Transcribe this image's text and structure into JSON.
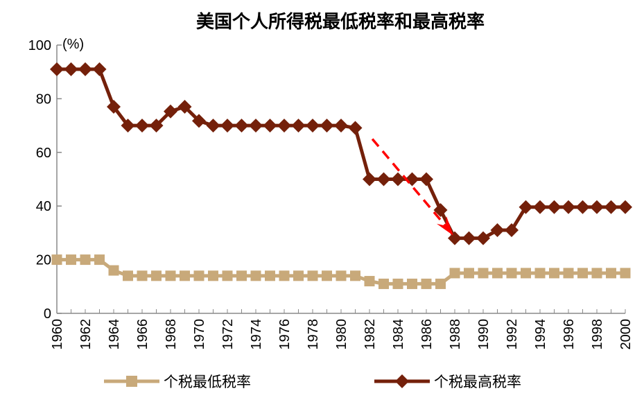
{
  "chart_data": {
    "type": "line",
    "title": "美国个人所得税最低税率和最高税率",
    "ylabel": "(%)",
    "xlabel": "",
    "ylim": [
      0,
      100
    ],
    "xlim": [
      1960,
      2000
    ],
    "yticks": [
      "0",
      "20",
      "40",
      "60",
      "80",
      "100"
    ],
    "xticks": [
      "1960",
      "1962",
      "1964",
      "1966",
      "1968",
      "1970",
      "1972",
      "1974",
      "1976",
      "1978",
      "1980",
      "1982",
      "1984",
      "1986",
      "1988",
      "1990",
      "1992",
      "1994",
      "1996",
      "1998",
      "2000"
    ],
    "grid": false,
    "legend_position": "bottom",
    "x": [
      1960,
      1961,
      1962,
      1963,
      1964,
      1965,
      1966,
      1967,
      1968,
      1969,
      1970,
      1971,
      1972,
      1973,
      1974,
      1975,
      1976,
      1977,
      1978,
      1979,
      1980,
      1981,
      1982,
      1983,
      1984,
      1985,
      1986,
      1987,
      1988,
      1989,
      1990,
      1991,
      1992,
      1993,
      1994,
      1995,
      1996,
      1997,
      1998,
      1999,
      2000
    ],
    "series": [
      {
        "name": "个税最低税率",
        "color": "#C8A97A",
        "marker": "square",
        "values": [
          20,
          20,
          20,
          20,
          16,
          14,
          14,
          14,
          14,
          14,
          14,
          14,
          14,
          14,
          14,
          14,
          14,
          14,
          14,
          14,
          14,
          14,
          12,
          11,
          11,
          11,
          11,
          11,
          15,
          15,
          15,
          15,
          15,
          15,
          15,
          15,
          15,
          15,
          15,
          15,
          15
        ]
      },
      {
        "name": "个税最高税率",
        "color": "#74200A",
        "marker": "diamond",
        "values": [
          91,
          91,
          91,
          91,
          77,
          70,
          70,
          70,
          75.25,
          77,
          71.75,
          70,
          70,
          70,
          70,
          70,
          70,
          70,
          70,
          70,
          70,
          69.13,
          50,
          50,
          50,
          50,
          50,
          38.5,
          28,
          28,
          28,
          31,
          31,
          39.6,
          39.6,
          39.6,
          39.6,
          39.6,
          39.6,
          39.6,
          39.6
        ]
      }
    ],
    "annotation": {
      "type": "dashed-arrow",
      "color": "#FF0000",
      "from_x": 1982.2,
      "from_y": 65,
      "to_x": 1987.9,
      "to_y": 29
    }
  }
}
